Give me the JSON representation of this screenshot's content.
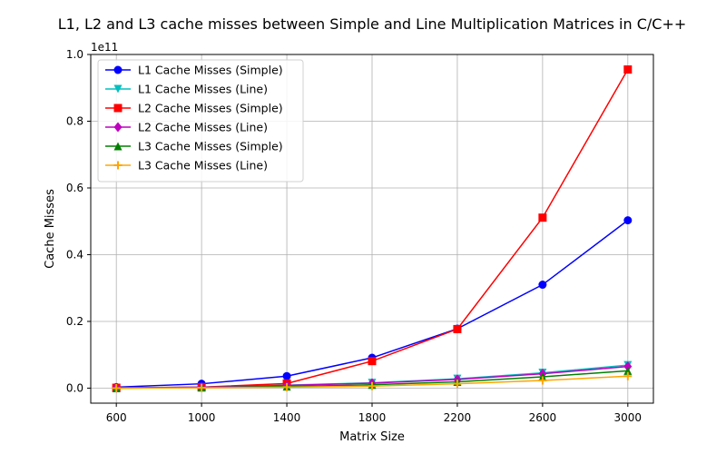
{
  "chart_data": {
    "type": "line",
    "title": "L1, L2 and L3 cache misses between Simple and Line Multiplication Matrices in C/C++",
    "xlabel": "Matrix Size",
    "ylabel": "Cache Misses",
    "y_offset_label": "1e11",
    "x": [
      600,
      1000,
      1400,
      1800,
      2200,
      2600,
      3000
    ],
    "x_tick_labels": [
      "600",
      "1000",
      "1400",
      "1800",
      "2200",
      "2600",
      "3000"
    ],
    "y_ticks": [
      0.0,
      0.2,
      0.4,
      0.6,
      0.8,
      1.0
    ],
    "y_tick_labels": [
      "0.0",
      "0.2",
      "0.4",
      "0.6",
      "0.8",
      "1.0"
    ],
    "ylim": [
      -0.045,
      1.0
    ],
    "grid": true,
    "legend_position": "top-left",
    "series": [
      {
        "name": "L1 Cache Misses (Simple)",
        "color": "#0000ff",
        "marker": "circle",
        "values": [
          0.003,
          0.013,
          0.036,
          0.091,
          0.178,
          0.31,
          0.503
        ]
      },
      {
        "name": "L1 Cache Misses (Line)",
        "color": "#00bfbf",
        "marker": "triangle-down",
        "values": [
          0.001,
          0.003,
          0.009,
          0.016,
          0.028,
          0.046,
          0.069
        ]
      },
      {
        "name": "L2 Cache Misses (Simple)",
        "color": "#ff0000",
        "marker": "square",
        "values": [
          0.001,
          0.003,
          0.014,
          0.081,
          0.177,
          0.511,
          0.955
        ]
      },
      {
        "name": "L2 Cache Misses (Line)",
        "color": "#bf00bf",
        "marker": "diamond",
        "values": [
          0.001,
          0.003,
          0.008,
          0.015,
          0.026,
          0.043,
          0.065
        ]
      },
      {
        "name": "L3 Cache Misses (Simple)",
        "color": "#008000",
        "marker": "triangle-up",
        "values": [
          0.0,
          0.002,
          0.005,
          0.01,
          0.019,
          0.034,
          0.052
        ]
      },
      {
        "name": "L3 Cache Misses (Line)",
        "color": "#ffa500",
        "marker": "plus",
        "values": [
          0.0,
          0.001,
          0.003,
          0.006,
          0.013,
          0.023,
          0.036
        ]
      }
    ]
  }
}
